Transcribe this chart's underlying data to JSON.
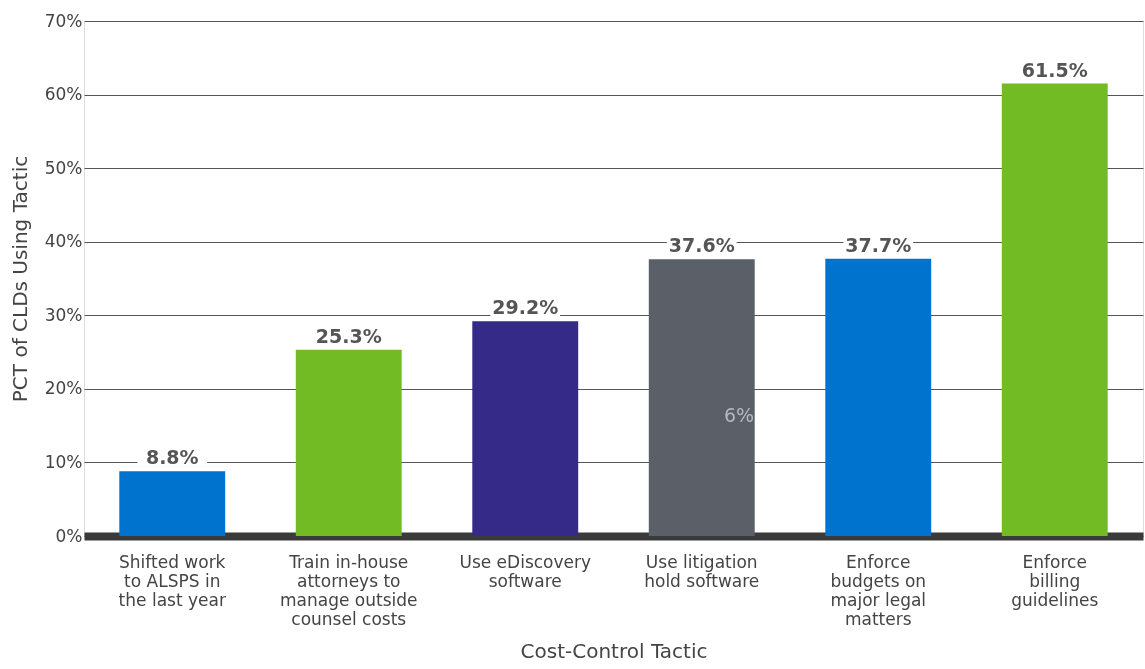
{
  "chart_data": {
    "type": "bar",
    "xlabel": "Cost-Control Tactic",
    "ylabel": "PCT of CLDs Using Tactic",
    "categories": [
      "Shifted work to ALSPS in the last year",
      "Train in-house attorneys to manage outside counsel costs",
      "Use eDiscovery software",
      "Use litigation hold software",
      "Enforce budgets on major legal matters",
      "Enforce billing guidelines"
    ],
    "values": [
      8.8,
      25.3,
      29.2,
      37.6,
      37.7,
      61.5
    ],
    "colors": [
      "#0073cf",
      "#72bb24",
      "#352a87",
      "#5a5f68",
      "#0073cf",
      "#72bb24"
    ],
    "value_labels": [
      "8.8%",
      "25.3%",
      "29.2%",
      "37.6%",
      "37.7%",
      "61.5%"
    ],
    "annotations": [
      "6%"
    ],
    "ylim": [
      0,
      70
    ],
    "yticks": [
      {
        "value": 0,
        "label": "0%"
      },
      {
        "value": 10,
        "label": "10%"
      },
      {
        "value": 20,
        "label": "20%"
      },
      {
        "value": 30,
        "label": "30%"
      },
      {
        "value": 40,
        "label": "40%"
      },
      {
        "value": 50,
        "label": "50%"
      },
      {
        "value": 60,
        "label": "60%"
      },
      {
        "value": 70,
        "label": "70%"
      }
    ],
    "grid": "y"
  }
}
